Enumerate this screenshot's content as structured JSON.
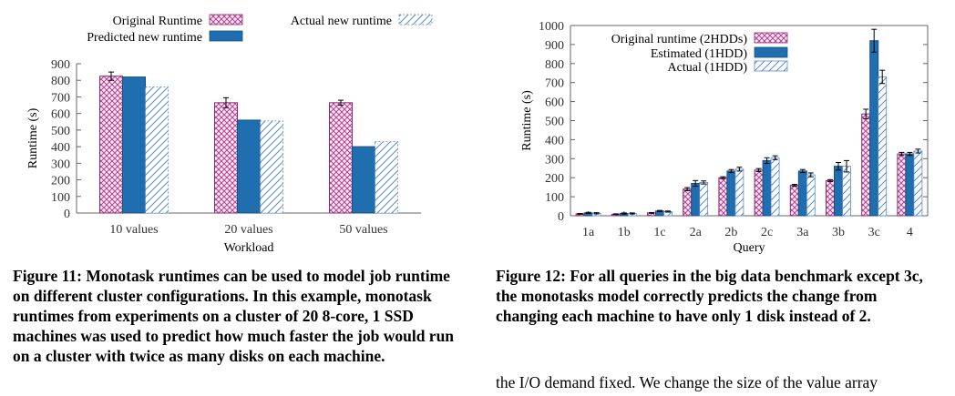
{
  "colors": {
    "original": "#b0408f",
    "predicted": "#1f6fb0",
    "actual": "#5a8cc8",
    "axis": "#666666",
    "text": "#000000"
  },
  "figure11": {
    "caption": "Figure 11: Monotask runtimes can be used to model job runtime on different cluster configurations. In this example, monotask runtimes from experiments on a cluster of 20 8-core, 1 SSD machines was used to predict how much faster the job would run on a cluster with twice as many disks on each machine."
  },
  "figure12": {
    "caption": "Figure 12: For all queries in the big data benchmark except 3c, the monotasks model correctly predicts the change from changing each machine to have only 1 disk instead of 2."
  },
  "body_text": "the I/O demand fixed. We change the size of the value array",
  "chart_data": [
    {
      "type": "bar",
      "xlabel": "Workload",
      "ylabel": "Runtime (s)",
      "ylim": [
        0,
        900
      ],
      "yticks": [
        0,
        100,
        200,
        300,
        400,
        500,
        600,
        700,
        800,
        900
      ],
      "categories": [
        "10 values",
        "20 values",
        "50 values"
      ],
      "series": [
        {
          "name": "Original Runtime",
          "key": "original",
          "values": [
            825,
            665,
            665
          ],
          "err": [
            25,
            30,
            15
          ]
        },
        {
          "name": "Predicted new runtime",
          "key": "predicted",
          "values": [
            820,
            560,
            400
          ],
          "err": [
            0,
            0,
            0
          ]
        },
        {
          "name": "Actual new runtime",
          "key": "actual",
          "values": [
            760,
            555,
            430
          ],
          "err": [
            0,
            0,
            0
          ]
        }
      ],
      "legend": "top"
    },
    {
      "type": "bar",
      "xlabel": "Query",
      "ylabel": "Runtime (s)",
      "ylim": [
        0,
        1000
      ],
      "yticks": [
        0,
        100,
        200,
        300,
        400,
        500,
        600,
        700,
        800,
        900,
        1000
      ],
      "categories": [
        "1a",
        "1b",
        "1c",
        "2a",
        "2b",
        "2c",
        "3a",
        "3b",
        "3c",
        "4"
      ],
      "series": [
        {
          "name": "Original runtime (2HDDs)",
          "key": "original",
          "values": [
            10,
            8,
            15,
            140,
            200,
            240,
            160,
            185,
            535,
            325
          ],
          "err": [
            2,
            2,
            2,
            8,
            5,
            8,
            5,
            5,
            25,
            8
          ]
        },
        {
          "name": "Estimated (1HDD)",
          "key": "predicted",
          "values": [
            15,
            12,
            25,
            170,
            235,
            290,
            235,
            260,
            920,
            325
          ],
          "err": [
            3,
            3,
            3,
            15,
            8,
            15,
            8,
            20,
            60,
            8
          ]
        },
        {
          "name": "Actual (1HDD)",
          "key": "actual",
          "values": [
            13,
            12,
            22,
            175,
            245,
            305,
            215,
            260,
            730,
            340
          ],
          "err": [
            3,
            3,
            3,
            8,
            10,
            10,
            10,
            30,
            35,
            10
          ]
        }
      ],
      "legend": "top-left"
    }
  ]
}
